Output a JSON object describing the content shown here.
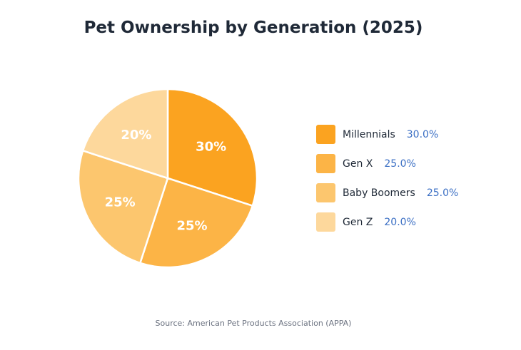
{
  "chart_data": {
    "type": "pie",
    "title": "Pet Ownership by Generation (2025)",
    "categories": [
      "Millennials",
      "Gen X",
      "Baby Boomers",
      "Gen Z"
    ],
    "values": [
      30.0,
      25.0,
      25.0,
      20.0
    ],
    "slice_labels": [
      "30%",
      "25%",
      "25%",
      "20%"
    ],
    "legend_values": [
      "30.0%",
      "25.0%",
      "25.0%",
      "20.0%"
    ],
    "colors": [
      "#fba320",
      "#fcb446",
      "#fcc66e",
      "#fdd89c"
    ],
    "legend": "right",
    "start_angle": "12 o'clock",
    "direction": "clockwise"
  },
  "source": "Source: American Pet Products Association (APPA)"
}
